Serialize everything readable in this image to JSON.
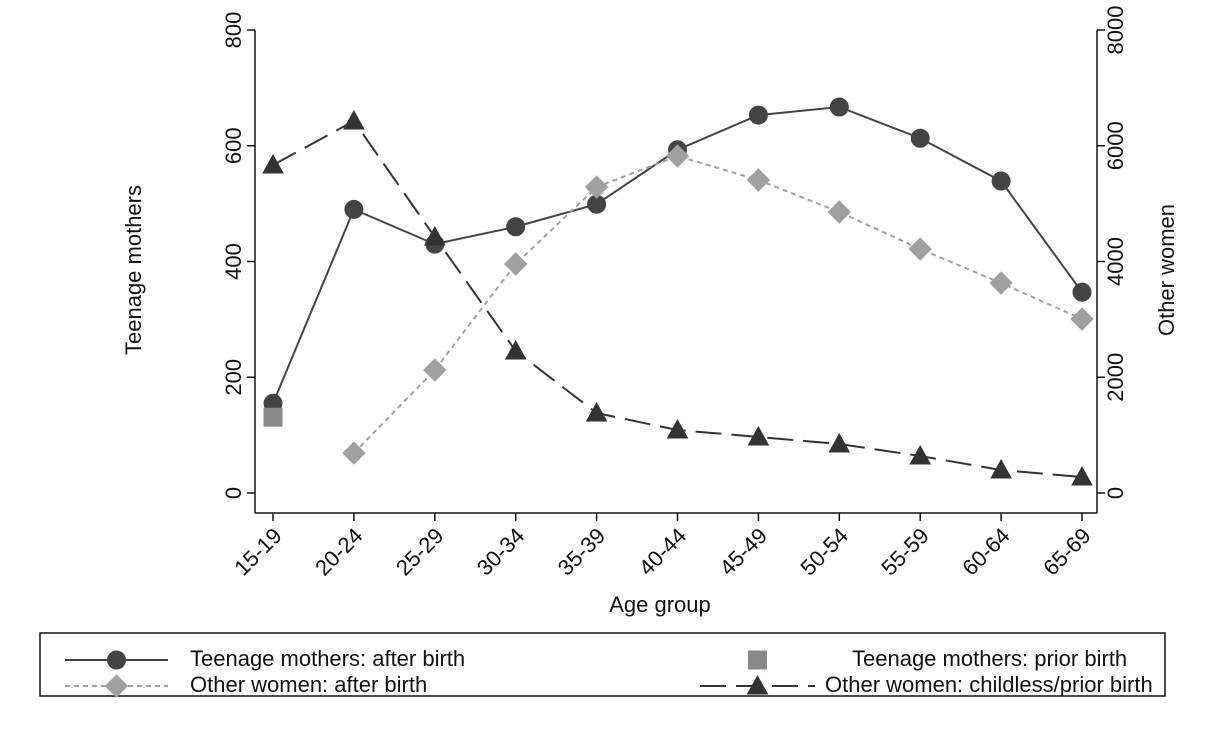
{
  "chart_data": {
    "type": "line",
    "categories": [
      "15-19",
      "20-24",
      "25-29",
      "30-34",
      "35-39",
      "40-44",
      "45-49",
      "50-54",
      "55-59",
      "60-64",
      "65-69"
    ],
    "x_label": "Age group",
    "y_label": "Teenage mothers",
    "y2_label": "Other women",
    "ylim": [
      0,
      800
    ],
    "yticks": [
      0,
      200,
      400,
      600,
      800
    ],
    "y2lim": [
      0,
      8000
    ],
    "y2ticks": [
      0,
      2000,
      4000,
      6000,
      8000
    ],
    "series": [
      {
        "name": "Teenage mothers: after birth",
        "color": "#444444",
        "marker": "circle",
        "line": "solid",
        "values": [
          155,
          490,
          430,
          460,
          499,
          593,
          653,
          667,
          613,
          539,
          347
        ]
      },
      {
        "name": "Teenage mothers: prior birth",
        "color": "#888888",
        "marker": "square",
        "line": "none",
        "values": [
          131,
          null,
          null,
          null,
          null,
          null,
          null,
          null,
          null,
          null,
          null
        ]
      },
      {
        "name": "Other women: after birth",
        "color": "#a0a0a0",
        "marker": "diamond",
        "line": "dotted",
        "axis": "y2",
        "values": [
          null,
          690,
          2125,
          3957,
          5287,
          5822,
          5408,
          4855,
          4216,
          3628,
          3006
        ]
      },
      {
        "name": "Other women: childless/prior birth",
        "color": "#333333",
        "marker": "triangle",
        "line": "dashed",
        "axis": "y2",
        "values": [
          5667,
          6427,
          4423,
          2453,
          1382,
          1088,
          968,
          847,
          639,
          397,
          276
        ]
      }
    ],
    "legend": "bottom"
  }
}
